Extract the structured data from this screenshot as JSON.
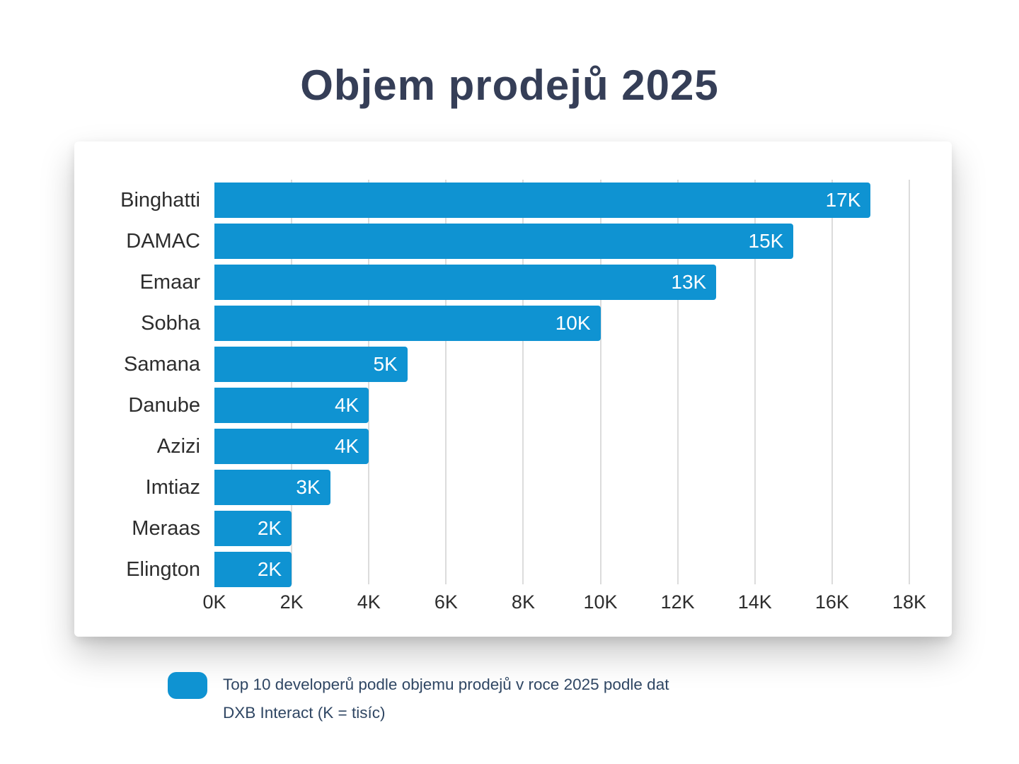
{
  "title": "Objem prodejů 2025",
  "chart_data": {
    "type": "bar",
    "orientation": "horizontal",
    "title": "Objem prodejů 2025",
    "categories": [
      "Binghatti",
      "DAMAC",
      "Emaar",
      "Sobha",
      "Samana",
      "Danube",
      "Azizi",
      "Imtiaz",
      "Meraas",
      "Elington"
    ],
    "values": [
      17,
      15,
      13,
      10,
      5,
      4,
      4,
      3,
      2,
      2
    ],
    "value_labels": [
      "17K",
      "15K",
      "13K",
      "10K",
      "5K",
      "4K",
      "4K",
      "3K",
      "2K",
      "2K"
    ],
    "x_ticks": [
      "0K",
      "2K",
      "4K",
      "6K",
      "8K",
      "10K",
      "12K",
      "14K",
      "16K",
      "18K"
    ],
    "xlim": [
      0,
      18
    ],
    "gridline_values": [
      2,
      4,
      6,
      8,
      10,
      12,
      14,
      16,
      18
    ],
    "unit": "K = tisíc",
    "grid": true,
    "legend_position": "bottom"
  },
  "legend": {
    "lines": [
      "Top 10 developerů podle objemu prodejů v roce 2025 podle dat",
      "DXB Interact (K = tisíc)"
    ]
  },
  "colors": {
    "bar": "#0F93D2",
    "title": "#353E57",
    "axis_label": "#2d2d2d",
    "legend_text": "#2F4663",
    "gridline": "#dcdcdc",
    "card_background": "#ffffff"
  }
}
